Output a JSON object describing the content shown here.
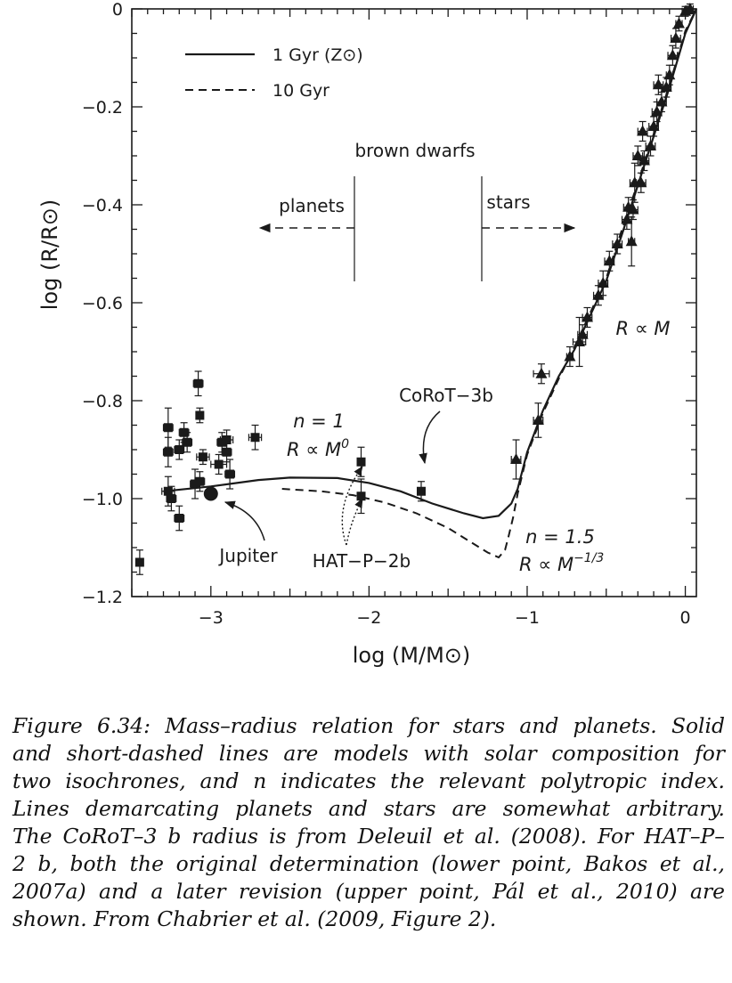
{
  "chart_data": {
    "type": "scatter",
    "xlabel": "log (M/M⊙)",
    "ylabel": "log (R/R⊙)",
    "xlim": [
      -3.5,
      0.07
    ],
    "ylim": [
      -1.2,
      0
    ],
    "xticks": [
      -3,
      -2,
      -1,
      0
    ],
    "xtick_labels": [
      "−3",
      "−2",
      "−1",
      "0"
    ],
    "yticks": [
      0,
      -0.2,
      -0.4,
      -0.6,
      -0.8,
      -1.0,
      -1.2
    ],
    "ytick_labels": [
      "0",
      "−0.2",
      "−0.4",
      "−0.6",
      "−0.8",
      "−1.0",
      "−1.2"
    ],
    "legend": {
      "position": "top-left",
      "entries": [
        {
          "label": "1 Gyr (Z⊙)",
          "style": "solid"
        },
        {
          "label": "10 Gyr",
          "style": "dashed"
        }
      ]
    },
    "models": [
      {
        "name": "1 Gyr (Z⊙)",
        "style": "solid",
        "points": [
          [
            -3.3,
            -0.985
          ],
          [
            -3.0,
            -0.975
          ],
          [
            -2.7,
            -0.962
          ],
          [
            -2.5,
            -0.957
          ],
          [
            -2.2,
            -0.958
          ],
          [
            -2.0,
            -0.968
          ],
          [
            -1.8,
            -0.985
          ],
          [
            -1.6,
            -1.01
          ],
          [
            -1.4,
            -1.03
          ],
          [
            -1.28,
            -1.04
          ],
          [
            -1.18,
            -1.035
          ],
          [
            -1.1,
            -1.01
          ],
          [
            -1.06,
            -0.98
          ],
          [
            -1.0,
            -0.905
          ],
          [
            -0.9,
            -0.82
          ],
          [
            -0.8,
            -0.75
          ],
          [
            -0.7,
            -0.695
          ],
          [
            -0.6,
            -0.625
          ],
          [
            -0.5,
            -0.555
          ],
          [
            -0.4,
            -0.46
          ],
          [
            -0.3,
            -0.36
          ],
          [
            -0.2,
            -0.26
          ],
          [
            -0.1,
            -0.16
          ],
          [
            0.0,
            -0.05
          ],
          [
            0.07,
            0.0
          ]
        ]
      },
      {
        "name": "10 Gyr",
        "style": "dashed",
        "points": [
          [
            -2.55,
            -0.98
          ],
          [
            -2.3,
            -0.985
          ],
          [
            -2.1,
            -0.993
          ],
          [
            -1.9,
            -1.008
          ],
          [
            -1.7,
            -1.03
          ],
          [
            -1.5,
            -1.06
          ],
          [
            -1.35,
            -1.09
          ],
          [
            -1.25,
            -1.11
          ],
          [
            -1.18,
            -1.12
          ],
          [
            -1.14,
            -1.105
          ],
          [
            -1.12,
            -1.08
          ],
          [
            -1.09,
            -1.04
          ],
          [
            -1.06,
            -0.99
          ],
          [
            -1.0,
            -0.91
          ],
          [
            -0.9,
            -0.825
          ],
          [
            -0.8,
            -0.755
          ],
          [
            -0.7,
            -0.69
          ],
          [
            -0.6,
            -0.62
          ],
          [
            -0.5,
            -0.55
          ],
          [
            -0.4,
            -0.45
          ],
          [
            -0.3,
            -0.355
          ],
          [
            -0.2,
            -0.255
          ],
          [
            -0.1,
            -0.155
          ],
          [
            0.0,
            -0.045
          ],
          [
            0.07,
            0.0
          ]
        ]
      }
    ],
    "series": [
      {
        "name": "planets",
        "marker": "square",
        "points": [
          {
            "x": -3.45,
            "y": -1.13,
            "ex": 0.02,
            "ey": 0.025
          },
          {
            "x": -3.27,
            "y": -0.985,
            "ex": 0.04,
            "ey": 0.03
          },
          {
            "x": -3.25,
            "y": -1.0,
            "ex": 0.03,
            "ey": 0.025
          },
          {
            "x": -3.27,
            "y": -0.905,
            "ex": 0.03,
            "ey": 0.03
          },
          {
            "x": -3.27,
            "y": -0.855,
            "ex": 0.03,
            "ey": 0.04
          },
          {
            "x": -3.2,
            "y": -1.04,
            "ex": 0.03,
            "ey": 0.025
          },
          {
            "x": -3.2,
            "y": -0.9,
            "ex": 0.03,
            "ey": 0.02
          },
          {
            "x": -3.17,
            "y": -0.865,
            "ex": 0.03,
            "ey": 0.02
          },
          {
            "x": -3.15,
            "y": -0.885,
            "ex": 0.03,
            "ey": 0.02
          },
          {
            "x": -3.1,
            "y": -0.97,
            "ex": 0.03,
            "ey": 0.03
          },
          {
            "x": -3.07,
            "y": -0.965,
            "ex": 0.03,
            "ey": 0.02
          },
          {
            "x": -3.08,
            "y": -0.765,
            "ex": 0.03,
            "ey": 0.025
          },
          {
            "x": -3.07,
            "y": -0.83,
            "ex": 0.02,
            "ey": 0.015
          },
          {
            "x": -3.05,
            "y": -0.915,
            "ex": 0.04,
            "ey": 0.015
          },
          {
            "x": -2.95,
            "y": -0.93,
            "ex": 0.05,
            "ey": 0.02
          },
          {
            "x": -2.93,
            "y": -0.885,
            "ex": 0.03,
            "ey": 0.02
          },
          {
            "x": -2.9,
            "y": -0.88,
            "ex": 0.04,
            "ey": 0.02
          },
          {
            "x": -2.9,
            "y": -0.905,
            "ex": 0.03,
            "ey": 0.02
          },
          {
            "x": -2.88,
            "y": -0.95,
            "ex": 0.03,
            "ey": 0.03
          },
          {
            "x": -2.72,
            "y": -0.875,
            "ex": 0.04,
            "ey": 0.025
          },
          {
            "x": -2.05,
            "y": -0.925,
            "ex": 0.02,
            "ey": 0.03
          },
          {
            "x": -2.05,
            "y": -0.995,
            "ex": 0.02,
            "ey": 0.035
          },
          {
            "x": -1.67,
            "y": -0.985,
            "ex": 0.0,
            "ey": 0.02
          }
        ]
      },
      {
        "name": "Jupiter",
        "marker": "circle",
        "points": [
          {
            "x": -3.0,
            "y": -0.99
          }
        ]
      },
      {
        "name": "stars",
        "marker": "triangle",
        "points": [
          {
            "x": -1.07,
            "y": -0.92,
            "ex": 0.03,
            "ey": 0.04
          },
          {
            "x": -0.93,
            "y": -0.84,
            "ex": 0.03,
            "ey": 0.035
          },
          {
            "x": -0.91,
            "y": -0.745,
            "ex": 0.05,
            "ey": 0.02
          },
          {
            "x": -0.73,
            "y": -0.71,
            "ex": 0.02,
            "ey": 0.02
          },
          {
            "x": -0.67,
            "y": -0.68,
            "ex": 0.04,
            "ey": 0.05
          },
          {
            "x": -0.65,
            "y": -0.665,
            "ex": 0.03,
            "ey": 0.02
          },
          {
            "x": -0.62,
            "y": -0.63,
            "ex": 0.03,
            "ey": 0.02
          },
          {
            "x": -0.55,
            "y": -0.585,
            "ex": 0.03,
            "ey": 0.02
          },
          {
            "x": -0.52,
            "y": -0.56,
            "ex": 0.03,
            "ey": 0.025
          },
          {
            "x": -0.48,
            "y": -0.515,
            "ex": 0.03,
            "ey": 0.02
          },
          {
            "x": -0.43,
            "y": -0.48,
            "ex": 0.03,
            "ey": 0.02
          },
          {
            "x": -0.34,
            "y": -0.475,
            "ex": 0.02,
            "ey": 0.05
          },
          {
            "x": -0.37,
            "y": -0.43,
            "ex": 0.03,
            "ey": 0.02
          },
          {
            "x": -0.36,
            "y": -0.405,
            "ex": 0.03,
            "ey": 0.02
          },
          {
            "x": -0.33,
            "y": -0.41,
            "ex": 0.03,
            "ey": 0.02
          },
          {
            "x": -0.32,
            "y": -0.355,
            "ex": 0.03,
            "ey": 0.04
          },
          {
            "x": -0.28,
            "y": -0.355,
            "ex": 0.03,
            "ey": 0.02
          },
          {
            "x": -0.3,
            "y": -0.3,
            "ex": 0.03,
            "ey": 0.02
          },
          {
            "x": -0.26,
            "y": -0.31,
            "ex": 0.03,
            "ey": 0.02
          },
          {
            "x": -0.22,
            "y": -0.28,
            "ex": 0.03,
            "ey": 0.02
          },
          {
            "x": -0.27,
            "y": -0.25,
            "ex": 0.03,
            "ey": 0.02
          },
          {
            "x": -0.2,
            "y": -0.24,
            "ex": 0.03,
            "ey": 0.02
          },
          {
            "x": -0.18,
            "y": -0.21,
            "ex": 0.03,
            "ey": 0.02
          },
          {
            "x": -0.15,
            "y": -0.19,
            "ex": 0.03,
            "ey": 0.02
          },
          {
            "x": -0.17,
            "y": -0.155,
            "ex": 0.03,
            "ey": 0.02
          },
          {
            "x": -0.12,
            "y": -0.16,
            "ex": 0.03,
            "ey": 0.02
          },
          {
            "x": -0.1,
            "y": -0.135,
            "ex": 0.02,
            "ey": 0.02
          },
          {
            "x": -0.08,
            "y": -0.095,
            "ex": 0.03,
            "ey": 0.02
          },
          {
            "x": -0.06,
            "y": -0.06,
            "ex": 0.03,
            "ey": 0.02
          },
          {
            "x": -0.04,
            "y": -0.03,
            "ex": 0.02,
            "ey": 0.015
          },
          {
            "x": 0.0,
            "y": -0.005,
            "ex": 0.02,
            "ey": 0.01
          },
          {
            "x": 0.03,
            "y": 0.0,
            "ex": 0.02,
            "ey": 0.01
          }
        ]
      }
    ],
    "annotations": {
      "brown_dwarfs": "brown dwarfs",
      "planets": "planets",
      "stars": "stars",
      "corot": "CoRoT−3b",
      "jupiter": "Jupiter",
      "hat": "HAT−P−2b",
      "n1": "n = 1",
      "r_m0": "R ∝ M",
      "r_m0_exp": "0",
      "n15": "n = 1.5",
      "r_m13": "R ∝ M",
      "r_m13_exp": "−1/3",
      "r_m": "R ∝ M"
    }
  },
  "caption": {
    "lines": [
      "Figure 6.34: Mass–radius relation for stars and planets.  Solid",
      "and short-dashed lines are models with solar composition for",
      "two isochrones, and n indicates the relevant polytropic index.",
      "Lines demarcating planets and stars are somewhat arbitrary.",
      "The CoRoT–3 b radius is from Deleuil et al. (2008).  For HAT–P–",
      "2 b, both the original determination (lower point, Bakos et al.,",
      "2007a) and a later revision (upper point, Pál et al., 2010) are",
      "shown. From Chabrier et al. (2009, Figure 2)."
    ]
  }
}
